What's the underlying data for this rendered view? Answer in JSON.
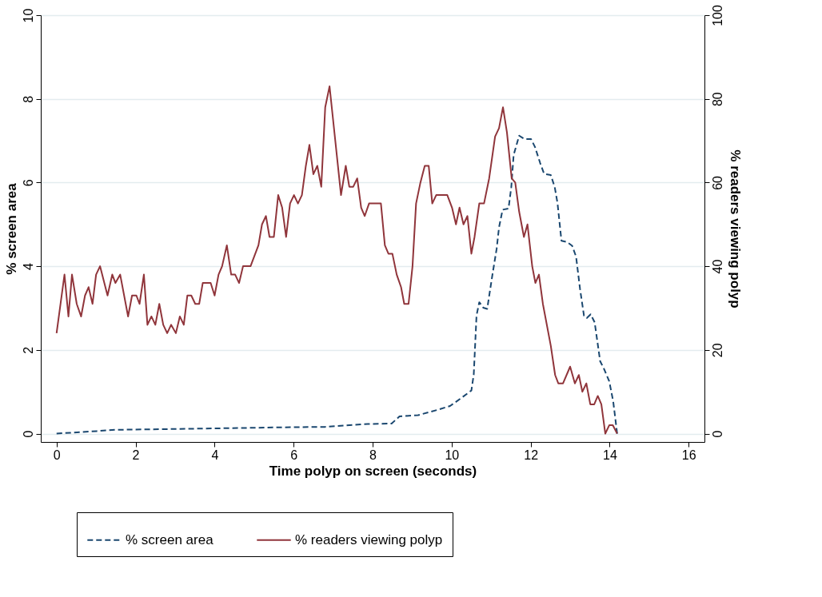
{
  "chart_data": {
    "type": "line",
    "xlabel": "Time polyp on screen (seconds)",
    "ylabel": "% screen area",
    "y2label": "% readers viewing polyp",
    "xlim": [
      -0.4,
      16.4
    ],
    "xticks": [
      0,
      2,
      4,
      6,
      8,
      10,
      12,
      14,
      16
    ],
    "ylim": [
      -0.2,
      10
    ],
    "yticks": [
      0,
      2,
      4,
      6,
      8,
      10
    ],
    "y2lim": [
      -2,
      100
    ],
    "y2ticks": [
      0,
      20,
      40,
      60,
      80,
      100
    ],
    "grid": "y",
    "legend": "bottom",
    "series": [
      {
        "name": "% screen area",
        "color": "#1a476f",
        "line_style": "dashed",
        "x": [
          0,
          1.02,
          1.49,
          3.71,
          5.73,
          6.79,
          7.88,
          8.48,
          8.68,
          9.15,
          9.69,
          9.96,
          10.23,
          10.5,
          10.56,
          10.63,
          10.7,
          10.8,
          10.9,
          11.03,
          11.14,
          11.2,
          11.29,
          11.44,
          11.51,
          11.57,
          11.71,
          11.84,
          12.01,
          12.11,
          12.24,
          12.34,
          12.51,
          12.61,
          12.68,
          12.78,
          12.92,
          13.05,
          13.15,
          13.25,
          13.35,
          13.42,
          13.52,
          13.62,
          13.76,
          13.86,
          13.99,
          14.09,
          14.19
        ],
        "values": [
          0,
          0.06,
          0.09,
          0.12,
          0.15,
          0.16,
          0.23,
          0.24,
          0.41,
          0.44,
          0.58,
          0.66,
          0.84,
          1.03,
          1.41,
          2.82,
          3.14,
          3.01,
          2.98,
          3.78,
          4.42,
          4.93,
          5.35,
          5.38,
          5.89,
          6.66,
          7.12,
          7.04,
          7.04,
          6.85,
          6.47,
          6.21,
          6.18,
          5.89,
          5.51,
          4.61,
          4.58,
          4.49,
          4.23,
          3.46,
          2.82,
          2.76,
          2.85,
          2.66,
          1.73,
          1.54,
          1.25,
          0.77,
          0
        ]
      },
      {
        "name": "% readers viewing polyp",
        "color": "#90353b",
        "line_style": "solid",
        "axis": "y2",
        "x": [
          0,
          0.2,
          0.3,
          0.39,
          0.51,
          0.62,
          0.72,
          0.81,
          0.91,
          1.0,
          1.1,
          1.29,
          1.41,
          1.49,
          1.61,
          1.81,
          1.91,
          2.02,
          2.1,
          2.21,
          2.3,
          2.4,
          2.5,
          2.6,
          2.7,
          2.8,
          2.9,
          3.02,
          3.12,
          3.22,
          3.31,
          3.41,
          3.51,
          3.61,
          3.7,
          3.9,
          4.0,
          4.1,
          4.19,
          4.31,
          4.42,
          4.52,
          4.62,
          4.72,
          4.91,
          5.11,
          5.2,
          5.3,
          5.39,
          5.5,
          5.61,
          5.71,
          5.81,
          5.91,
          6.01,
          6.11,
          6.21,
          6.31,
          6.4,
          6.5,
          6.6,
          6.7,
          6.8,
          6.91,
          7.2,
          7.32,
          7.41,
          7.51,
          7.61,
          7.71,
          7.8,
          7.91,
          8.21,
          8.31,
          8.4,
          8.5,
          8.61,
          8.72,
          8.8,
          8.91,
          9.01,
          9.1,
          9.21,
          9.32,
          9.42,
          9.51,
          9.61,
          9.89,
          10.01,
          10.11,
          10.2,
          10.3,
          10.4,
          10.5,
          10.58,
          10.7,
          10.82,
          10.95,
          11.1,
          11.2,
          11.3,
          11.4,
          11.52,
          11.61,
          11.71,
          11.83,
          11.92,
          12.04,
          12.12,
          12.21,
          12.31,
          12.51,
          12.62,
          12.7,
          12.82,
          13.0,
          13.12,
          13.22,
          13.31,
          13.41,
          13.51,
          13.61,
          13.7,
          13.79,
          13.89,
          13.99,
          14.08,
          14.19
        ],
        "values": [
          24,
          38,
          28,
          38,
          31,
          28,
          33,
          35,
          31,
          38,
          40,
          33,
          38,
          36,
          38,
          28,
          33,
          33,
          31,
          38,
          26,
          28,
          26,
          31,
          26,
          24,
          26,
          24,
          28,
          26,
          33,
          33,
          31,
          31,
          36,
          36,
          33,
          38,
          40,
          45,
          38,
          38,
          36,
          40,
          40,
          45,
          50,
          52,
          47,
          47,
          57,
          54,
          47,
          55,
          57,
          55,
          57,
          64,
          69,
          62,
          64,
          59,
          78,
          83,
          57,
          64,
          59,
          59,
          61,
          54,
          52,
          55,
          55,
          45,
          43,
          43,
          38,
          35,
          31,
          31,
          40,
          55,
          60,
          64,
          64,
          55,
          57,
          57,
          54,
          50,
          54,
          50,
          52,
          43,
          47,
          55,
          55,
          61,
          71,
          73,
          78,
          72,
          61,
          60,
          53,
          47,
          50,
          40,
          36,
          38,
          31,
          21,
          14,
          12,
          12,
          16,
          12,
          14,
          10,
          12,
          7,
          7,
          9,
          7,
          0,
          2,
          2,
          0
        ]
      }
    ]
  }
}
